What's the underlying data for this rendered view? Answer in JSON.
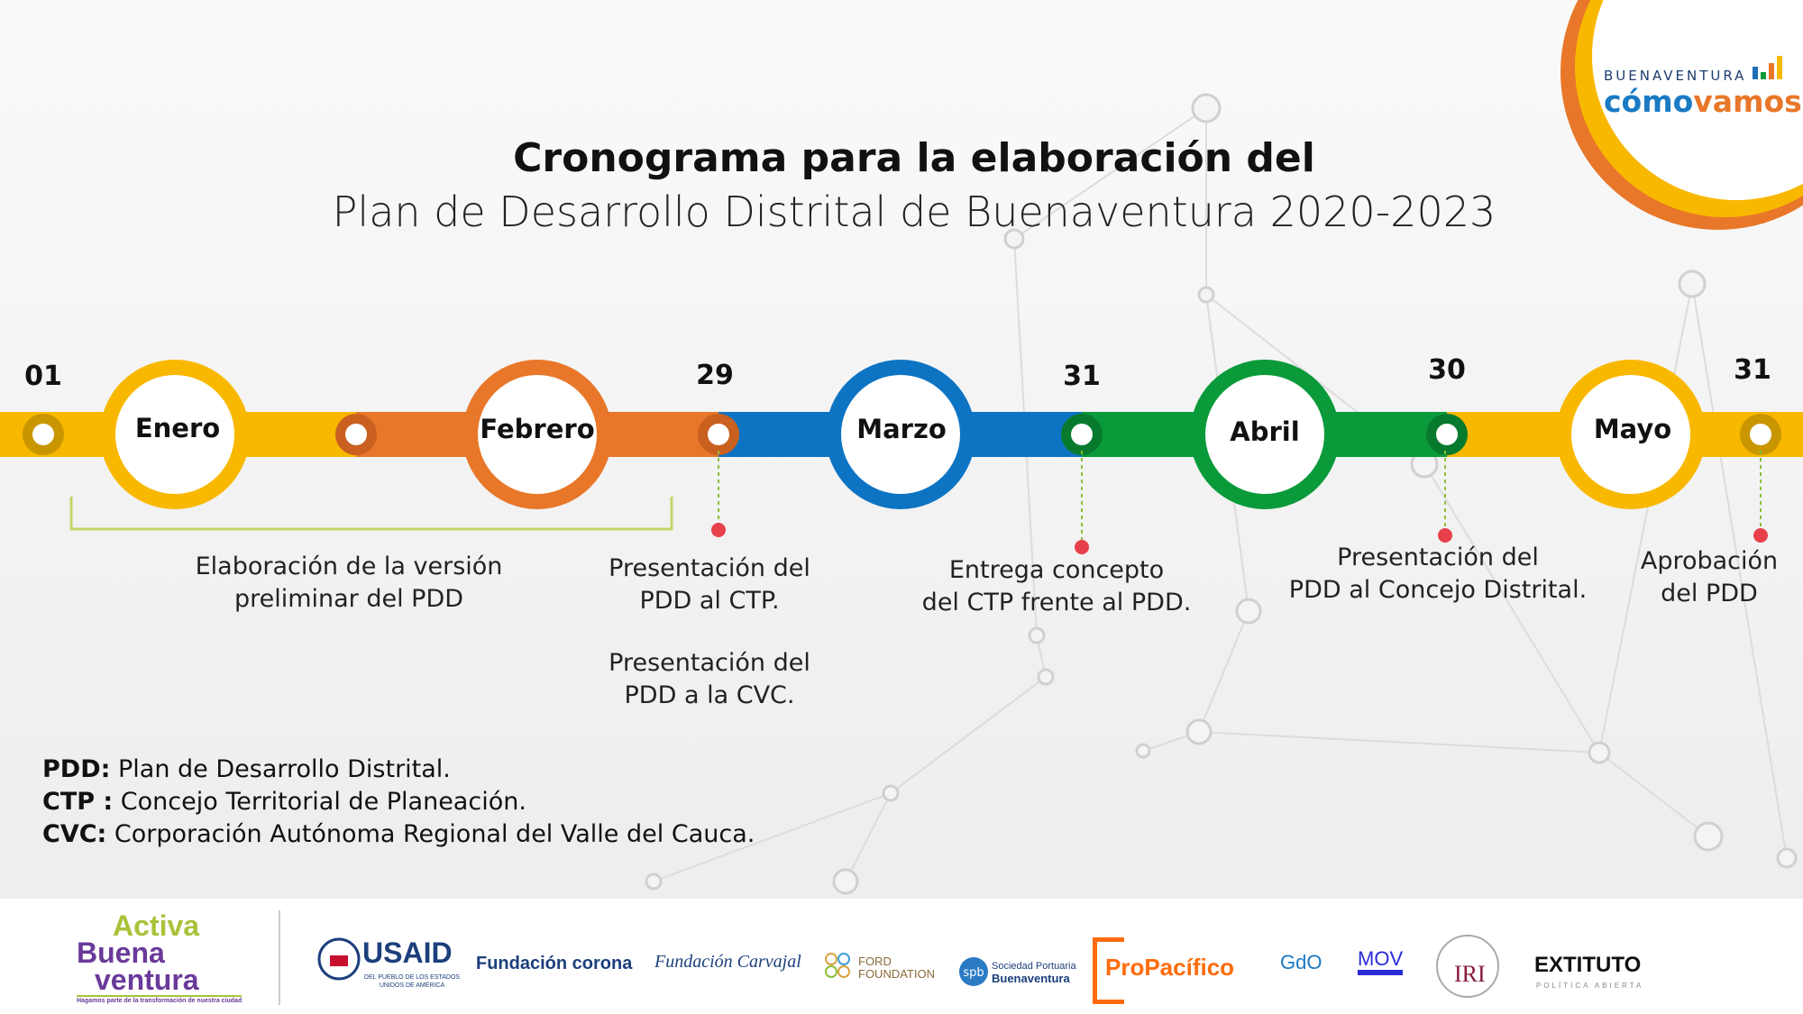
{
  "header": {
    "title_line1": "Cronograma para la elaboración del",
    "title_line2": "Plan de Desarrollo Distrital de Buenaventura 2020-2023"
  },
  "brand": {
    "line1": "BUENAVENTURA",
    "line2a": "cómo",
    "line2b": "vamos"
  },
  "timeline": {
    "dates": [
      "01",
      "29",
      "31",
      "30",
      "31"
    ],
    "months": [
      {
        "label": "Enero",
        "color": "#f9b800"
      },
      {
        "label": "Febrero",
        "color": "#e8772a"
      },
      {
        "label": "Marzo",
        "color": "#0d74c4"
      },
      {
        "label": "Abril",
        "color": "#0a9a3a"
      },
      {
        "label": "Mayo",
        "color": "#f9b800"
      }
    ],
    "events": [
      {
        "text": [
          "Elaboración de la versión",
          "preliminar del PDD"
        ]
      },
      {
        "text": [
          "Presentación del",
          "PDD al CTP."
        ],
        "text2": [
          "Presentación del",
          "PDD a la CVC."
        ]
      },
      {
        "text": [
          "Entrega concepto",
          "del CTP frente al PDD."
        ]
      },
      {
        "text": [
          "Presentación del",
          "PDD al Concejo Distrital."
        ]
      },
      {
        "text": [
          "Aprobación",
          "del PDD"
        ]
      }
    ],
    "marker_color": "#e8404a"
  },
  "legend": [
    {
      "abbr": "PDD:",
      "text": " Plan de Desarrollo Distrital."
    },
    {
      "abbr": "CTP :",
      "text": " Concejo Territorial de Planeación."
    },
    {
      "abbr": "CVC:",
      "text": " Corporación Autónoma Regional del Valle del Cauca."
    }
  ],
  "footer": {
    "activa": {
      "l1": "Activa",
      "l2": "Buena",
      "l3": "ventura",
      "tag": "Hagamos parte de la transformación de nuestra ciudad"
    },
    "usaid": {
      "name": "USAID",
      "sub": "DEL PUEBLO DE LOS ESTADOS UNIDOS DE AMÉRICA"
    },
    "corona": "Fundación corona",
    "carvajal": "Fundación Carvajal",
    "ford": "FORD FOUNDATION",
    "spb": {
      "l1": "Sociedad Portuaria",
      "l2": "Buenaventura"
    },
    "propacifico": "ProPacífico",
    "gdo": "GdO",
    "mov": "MOV",
    "iri": "IRI",
    "extituto": {
      "name": "EXTITUTO",
      "sub": "POLÍTICA ABIERTA"
    }
  }
}
